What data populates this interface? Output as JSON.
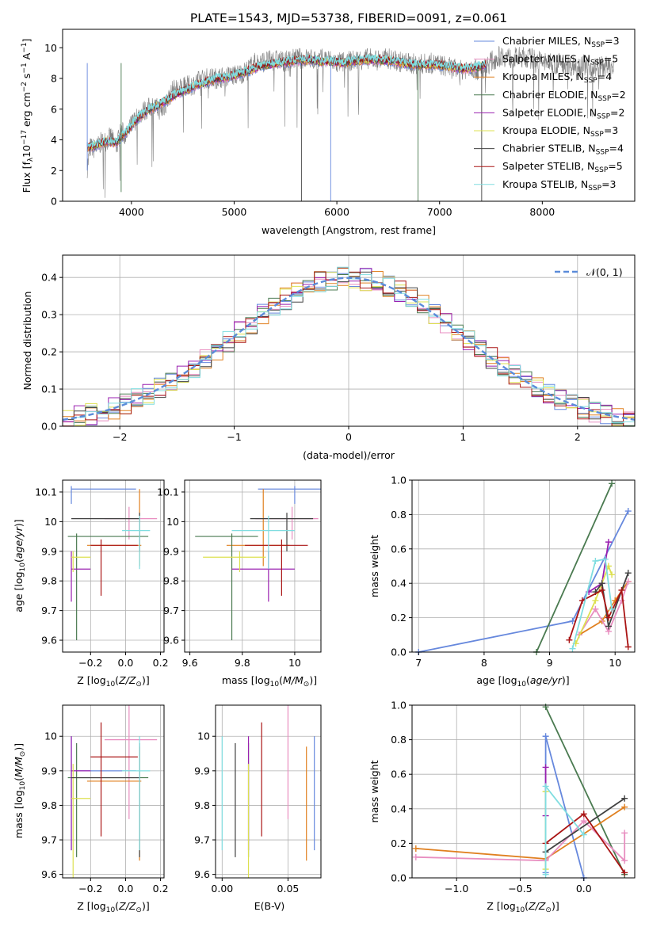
{
  "title": "PLATE=1543, MJD=53738, FIBERID=0091, z=0.061",
  "legend_spectra": [
    {
      "name": "Chabrier MILES, N",
      "n": "3",
      "color": "#6688dd"
    },
    {
      "name": "Salpeter MILES, N",
      "n": "5",
      "color": "#e88ec0"
    },
    {
      "name": "Kroupa MILES, N",
      "n": "4",
      "color": "#e08020"
    },
    {
      "name": "Chabrier ELODIE, N",
      "n": "2",
      "color": "#4a7a50"
    },
    {
      "name": "Salpeter ELODIE, N",
      "n": "2",
      "color": "#9a20b0"
    },
    {
      "name": "Kroupa ELODIE, N",
      "n": "3",
      "color": "#dde050"
    },
    {
      "name": "Chabrier STELIB, N",
      "n": "4",
      "color": "#404040"
    },
    {
      "name": "Salpeter STELIB, N",
      "n": "5",
      "color": "#aa1515"
    },
    {
      "name": "Kroupa STELIB, N",
      "n": "3",
      "color": "#80dde0"
    }
  ],
  "ssp_subscript": "SSP",
  "legend_normal": "𝒩(0, 1)",
  "labels": {
    "spec_x": "wavelength [Angstrom, rest frame]",
    "spec_y_prefix": "Flux [f",
    "spec_y_mid": "10",
    "spec_y_exp": "−17",
    "spec_y_suffix": " erg cm",
    "spec_y_exp2": "−2",
    "spec_y_s": " s",
    "spec_y_exp3": "−1",
    "spec_y_end": " A",
    "spec_y_exp4": "−1",
    "spec_y_close": "]",
    "hist_x": "(data-model)/error",
    "hist_y": "Normed distribution",
    "z_x": "Z [log",
    "age_y": "age  [log",
    "mass_x": "mass [log",
    "mw_y": "mass weight",
    "age_x": "age  [log",
    "ebv_x": "E(B-V)",
    "mass_y": "mass [log"
  },
  "chart_data": [
    {
      "type": "line",
      "title": "PLATE=1543, MJD=53738, FIBERID=0091, z=0.061",
      "xlabel": "wavelength [Angstrom, rest frame]",
      "ylabel": "Flux [fλ10^−17 erg cm^−2 s^−1 A^−1]",
      "xlim": [
        3330,
        8900
      ],
      "ylim": [
        0,
        11.2
      ],
      "xticks": [
        4000,
        5000,
        6000,
        7000,
        8000
      ],
      "yticks": [
        0,
        2,
        4,
        6,
        8,
        10
      ],
      "data_series": {
        "name": "data",
        "color": "#808080",
        "x": [
          3570,
          3600,
          3650,
          3700,
          3750,
          3800,
          3850,
          3900,
          3950,
          4000,
          4100,
          4200,
          4300,
          4400,
          4500,
          4600,
          4700,
          4800,
          4900,
          5000,
          5100,
          5200,
          5300,
          5400,
          5500,
          5600,
          5700,
          5800,
          5900,
          6000,
          6100,
          6200,
          6300,
          6400,
          6500,
          6600,
          6700,
          6800,
          6900,
          7000,
          7100,
          7200,
          7300,
          7400,
          7500,
          7600,
          7700,
          7800,
          7900,
          8000,
          8100,
          8200,
          8300,
          8400,
          8500,
          8600,
          8700
        ],
        "y": [
          2.2,
          3.5,
          3.4,
          3.8,
          3.9,
          4.2,
          3.5,
          4.6,
          4.2,
          5.0,
          5.8,
          6.2,
          5.9,
          7.2,
          7.4,
          7.6,
          8.0,
          8.0,
          8.1,
          8.2,
          8.4,
          9.0,
          9.1,
          9.2,
          9.1,
          9.3,
          9.3,
          9.2,
          9.3,
          9.0,
          9.1,
          9.2,
          9.3,
          9.2,
          9.3,
          9.1,
          9.0,
          8.9,
          9.0,
          8.9,
          8.7,
          8.5,
          8.8,
          8.4,
          9.1,
          9.5,
          9.3,
          9.4,
          9.3,
          9.1,
          8.9,
          9.0,
          8.8,
          8.9,
          8.7,
          8.8,
          8.6
        ]
      },
      "model_x": [
        3570,
        3650,
        3750,
        3850,
        3950,
        4050,
        4150,
        4250,
        4350,
        4450,
        4550,
        4650,
        4750,
        4850,
        4950,
        5050,
        5150,
        5250,
        5350,
        5450,
        5550,
        5650,
        5750,
        5850,
        5950,
        6050,
        6150,
        6250,
        6350,
        6450,
        6550,
        6650,
        6750,
        6850,
        6950,
        7050,
        7150,
        7250,
        7350,
        7450
      ],
      "model_y": [
        3.5,
        3.6,
        3.9,
        3.8,
        4.5,
        5.3,
        5.9,
        6.2,
        6.6,
        7.0,
        7.3,
        7.6,
        7.8,
        8.0,
        8.1,
        8.3,
        8.5,
        8.8,
        8.9,
        9.0,
        9.1,
        9.2,
        9.2,
        9.1,
        9.1,
        9.0,
        9.1,
        9.2,
        9.2,
        9.2,
        9.1,
        9.0,
        8.9,
        8.9,
        8.9,
        8.8,
        8.7,
        8.6,
        8.7,
        8.9
      ],
      "legend": "top-right"
    },
    {
      "type": "histogram",
      "xlabel": "(data-model)/error",
      "ylabel": "Normed distribution",
      "xlim": [
        -2.5,
        2.5
      ],
      "ylim": [
        0,
        0.46
      ],
      "xticks": [
        -2,
        -1,
        0,
        1,
        2
      ],
      "yticks": [
        0.0,
        0.1,
        0.2,
        0.3,
        0.4
      ],
      "grid": true,
      "bin_width": 0.1,
      "normal": {
        "name": "𝒩(0, 1)",
        "mean": 0,
        "sigma": 1,
        "color": "#5b8bd9"
      },
      "legend": "top-right"
    },
    {
      "type": "scatter",
      "panel": "Z vs age",
      "xlim": [
        -0.36,
        0.22
      ],
      "ylim": [
        9.56,
        10.14
      ],
      "xticks": [
        -0.2,
        0.0,
        0.2
      ],
      "xticklabels": [
        "−0.2",
        "0.0",
        "0.2"
      ],
      "yticks": [
        9.6,
        9.7,
        9.8,
        9.9,
        10.0,
        10.1
      ],
      "points": [
        {
          "c": "#6688dd",
          "x": -0.31,
          "y": 10.11,
          "xe": [
            -0.31,
            0.06
          ],
          "ye": [
            10.06,
            10.12
          ]
        },
        {
          "c": "#e88ec0",
          "x": 0.02,
          "y": 10.01,
          "xe": [
            -0.12,
            0.18
          ],
          "ye": [
            9.94,
            10.05
          ]
        },
        {
          "c": "#e08020",
          "x": 0.08,
          "y": 9.92,
          "xe": [
            -0.22,
            0.09
          ],
          "ye": [
            9.85,
            10.11
          ]
        },
        {
          "c": "#4a7a50",
          "x": -0.28,
          "y": 9.95,
          "xe": [
            -0.33,
            0.13
          ],
          "ye": [
            9.6,
            9.96
          ]
        },
        {
          "c": "#9a20b0",
          "x": -0.31,
          "y": 9.84,
          "xe": [
            -0.31,
            -0.2
          ],
          "ye": [
            9.73,
            9.9
          ]
        },
        {
          "c": "#dde050",
          "x": -0.3,
          "y": 9.88,
          "xe": [
            -0.31,
            -0.2
          ],
          "ye": [
            9.83,
            9.9
          ]
        },
        {
          "c": "#404040",
          "x": 0.08,
          "y": 10.01,
          "xe": [
            -0.31,
            0.08
          ],
          "ye": [
            9.9,
            10.03
          ]
        },
        {
          "c": "#aa1515",
          "x": -0.14,
          "y": 9.92,
          "xe": [
            -0.2,
            0.07
          ],
          "ye": [
            9.75,
            9.94
          ]
        },
        {
          "c": "#80dde0",
          "x": 0.08,
          "y": 9.97,
          "xe": [
            -0.02,
            0.14
          ],
          "ye": [
            9.84,
            10.02
          ]
        }
      ]
    },
    {
      "type": "scatter",
      "panel": "mass vs age",
      "xlim": [
        9.58,
        10.1
      ],
      "ylim": [
        9.56,
        10.14
      ],
      "xticks": [
        9.6,
        9.8,
        10.0
      ],
      "yticks": [
        9.6,
        9.7,
        9.8,
        9.9,
        10.0,
        10.1
      ]
    },
    {
      "type": "line",
      "panel": "age vs mass weight",
      "xlim": [
        6.9,
        10.3
      ],
      "ylim": [
        0,
        1.0
      ],
      "xticks": [
        7,
        8,
        9,
        10
      ],
      "yticks": [
        0.0,
        0.2,
        0.4,
        0.6,
        0.8,
        1.0
      ],
      "grid": true,
      "series": [
        {
          "c": "#6688dd",
          "x": [
            7.0,
            9.35,
            10.2
          ],
          "y": [
            0.0,
            0.18,
            0.82
          ]
        },
        {
          "c": "#4a7a50",
          "x": [
            8.8,
            9.95
          ],
          "y": [
            0.0,
            0.98
          ]
        },
        {
          "c": "#e08020",
          "x": [
            9.45,
            9.8,
            10.0,
            10.2
          ],
          "y": [
            0.1,
            0.18,
            0.3,
            0.41
          ]
        },
        {
          "c": "#e88ec0",
          "x": [
            9.45,
            9.7,
            9.9,
            10.1,
            10.2
          ],
          "y": [
            0.1,
            0.25,
            0.12,
            0.3,
            0.41
          ]
        },
        {
          "c": "#9a20b0",
          "x": [
            9.6,
            9.8,
            9.9
          ],
          "y": [
            0.35,
            0.4,
            0.64
          ]
        },
        {
          "c": "#dde050",
          "x": [
            9.4,
            9.7,
            9.9,
            9.95
          ],
          "y": [
            0.05,
            0.3,
            0.5,
            0.45
          ]
        },
        {
          "c": "#404040",
          "x": [
            9.7,
            9.8,
            9.9,
            10.2
          ],
          "y": [
            0.35,
            0.4,
            0.15,
            0.46
          ]
        },
        {
          "c": "#aa1515",
          "x": [
            9.3,
            9.5,
            9.8,
            9.9,
            10.1,
            10.2
          ],
          "y": [
            0.07,
            0.3,
            0.36,
            0.2,
            0.36,
            0.03
          ]
        },
        {
          "c": "#80dde0",
          "x": [
            9.35,
            9.7,
            9.85,
            9.95
          ],
          "y": [
            0.02,
            0.53,
            0.54,
            0.25
          ]
        }
      ]
    },
    {
      "type": "scatter",
      "panel": "Z vs mass",
      "xlim": [
        -0.36,
        0.22
      ],
      "ylim": [
        9.59,
        10.09
      ],
      "xticks": [
        -0.2,
        0.0,
        0.2
      ],
      "xticklabels": [
        "−0.2",
        "0.0",
        "0.2"
      ],
      "yticks": [
        9.6,
        9.7,
        9.8,
        9.9,
        10.0
      ]
    },
    {
      "type": "scatter",
      "panel": "E(B-V) vs mass",
      "xlim": [
        -0.005,
        0.075
      ],
      "ylim": [
        9.59,
        10.09
      ],
      "xticks": [
        0.0,
        0.05
      ],
      "xticklabels": [
        "0.00",
        "0.05"
      ],
      "yticks": [
        9.6,
        9.7,
        9.8,
        9.9,
        10.0
      ]
    },
    {
      "type": "line",
      "panel": "Z vs mass weight",
      "xlim": [
        -1.35,
        0.4
      ],
      "ylim": [
        0,
        1.0
      ],
      "xticks": [
        -1.0,
        -0.5,
        0.0
      ],
      "xticklabels": [
        "−1.0",
        "−0.5",
        "0.0"
      ],
      "yticks": [
        0.0,
        0.2,
        0.4,
        0.6,
        0.8,
        1.0
      ],
      "grid": true,
      "series": [
        {
          "c": "#6688dd",
          "x": [
            -0.3,
            -0.3,
            0.0
          ],
          "y": [
            0.03,
            0.82,
            0.0
          ]
        },
        {
          "c": "#4a7a50",
          "x": [
            -0.3,
            0.32
          ],
          "y": [
            0.99,
            0.02
          ]
        },
        {
          "c": "#e08020",
          "x": [
            -1.32,
            -0.3,
            0.32
          ],
          "y": [
            0.17,
            0.11,
            0.41
          ]
        },
        {
          "c": "#e88ec0",
          "x": [
            -1.32,
            -0.3,
            0.0,
            0.32,
            0.32
          ],
          "y": [
            0.12,
            0.1,
            0.33,
            0.1,
            0.26
          ]
        },
        {
          "c": "#9a20b0",
          "x": [
            -0.3,
            -0.3
          ],
          "y": [
            0.36,
            0.64
          ]
        },
        {
          "c": "#dde050",
          "x": [
            -0.3,
            -0.3
          ],
          "y": [
            0.05,
            0.5
          ]
        },
        {
          "c": "#404040",
          "x": [
            -0.3,
            0.32
          ],
          "y": [
            0.15,
            0.46
          ]
        },
        {
          "c": "#aa1515",
          "x": [
            -0.3,
            0.0,
            0.32
          ],
          "y": [
            0.2,
            0.37,
            0.03
          ]
        },
        {
          "c": "#80dde0",
          "x": [
            -0.3,
            -0.3,
            0.0
          ],
          "y": [
            0.02,
            0.53,
            0.25
          ]
        }
      ]
    }
  ]
}
